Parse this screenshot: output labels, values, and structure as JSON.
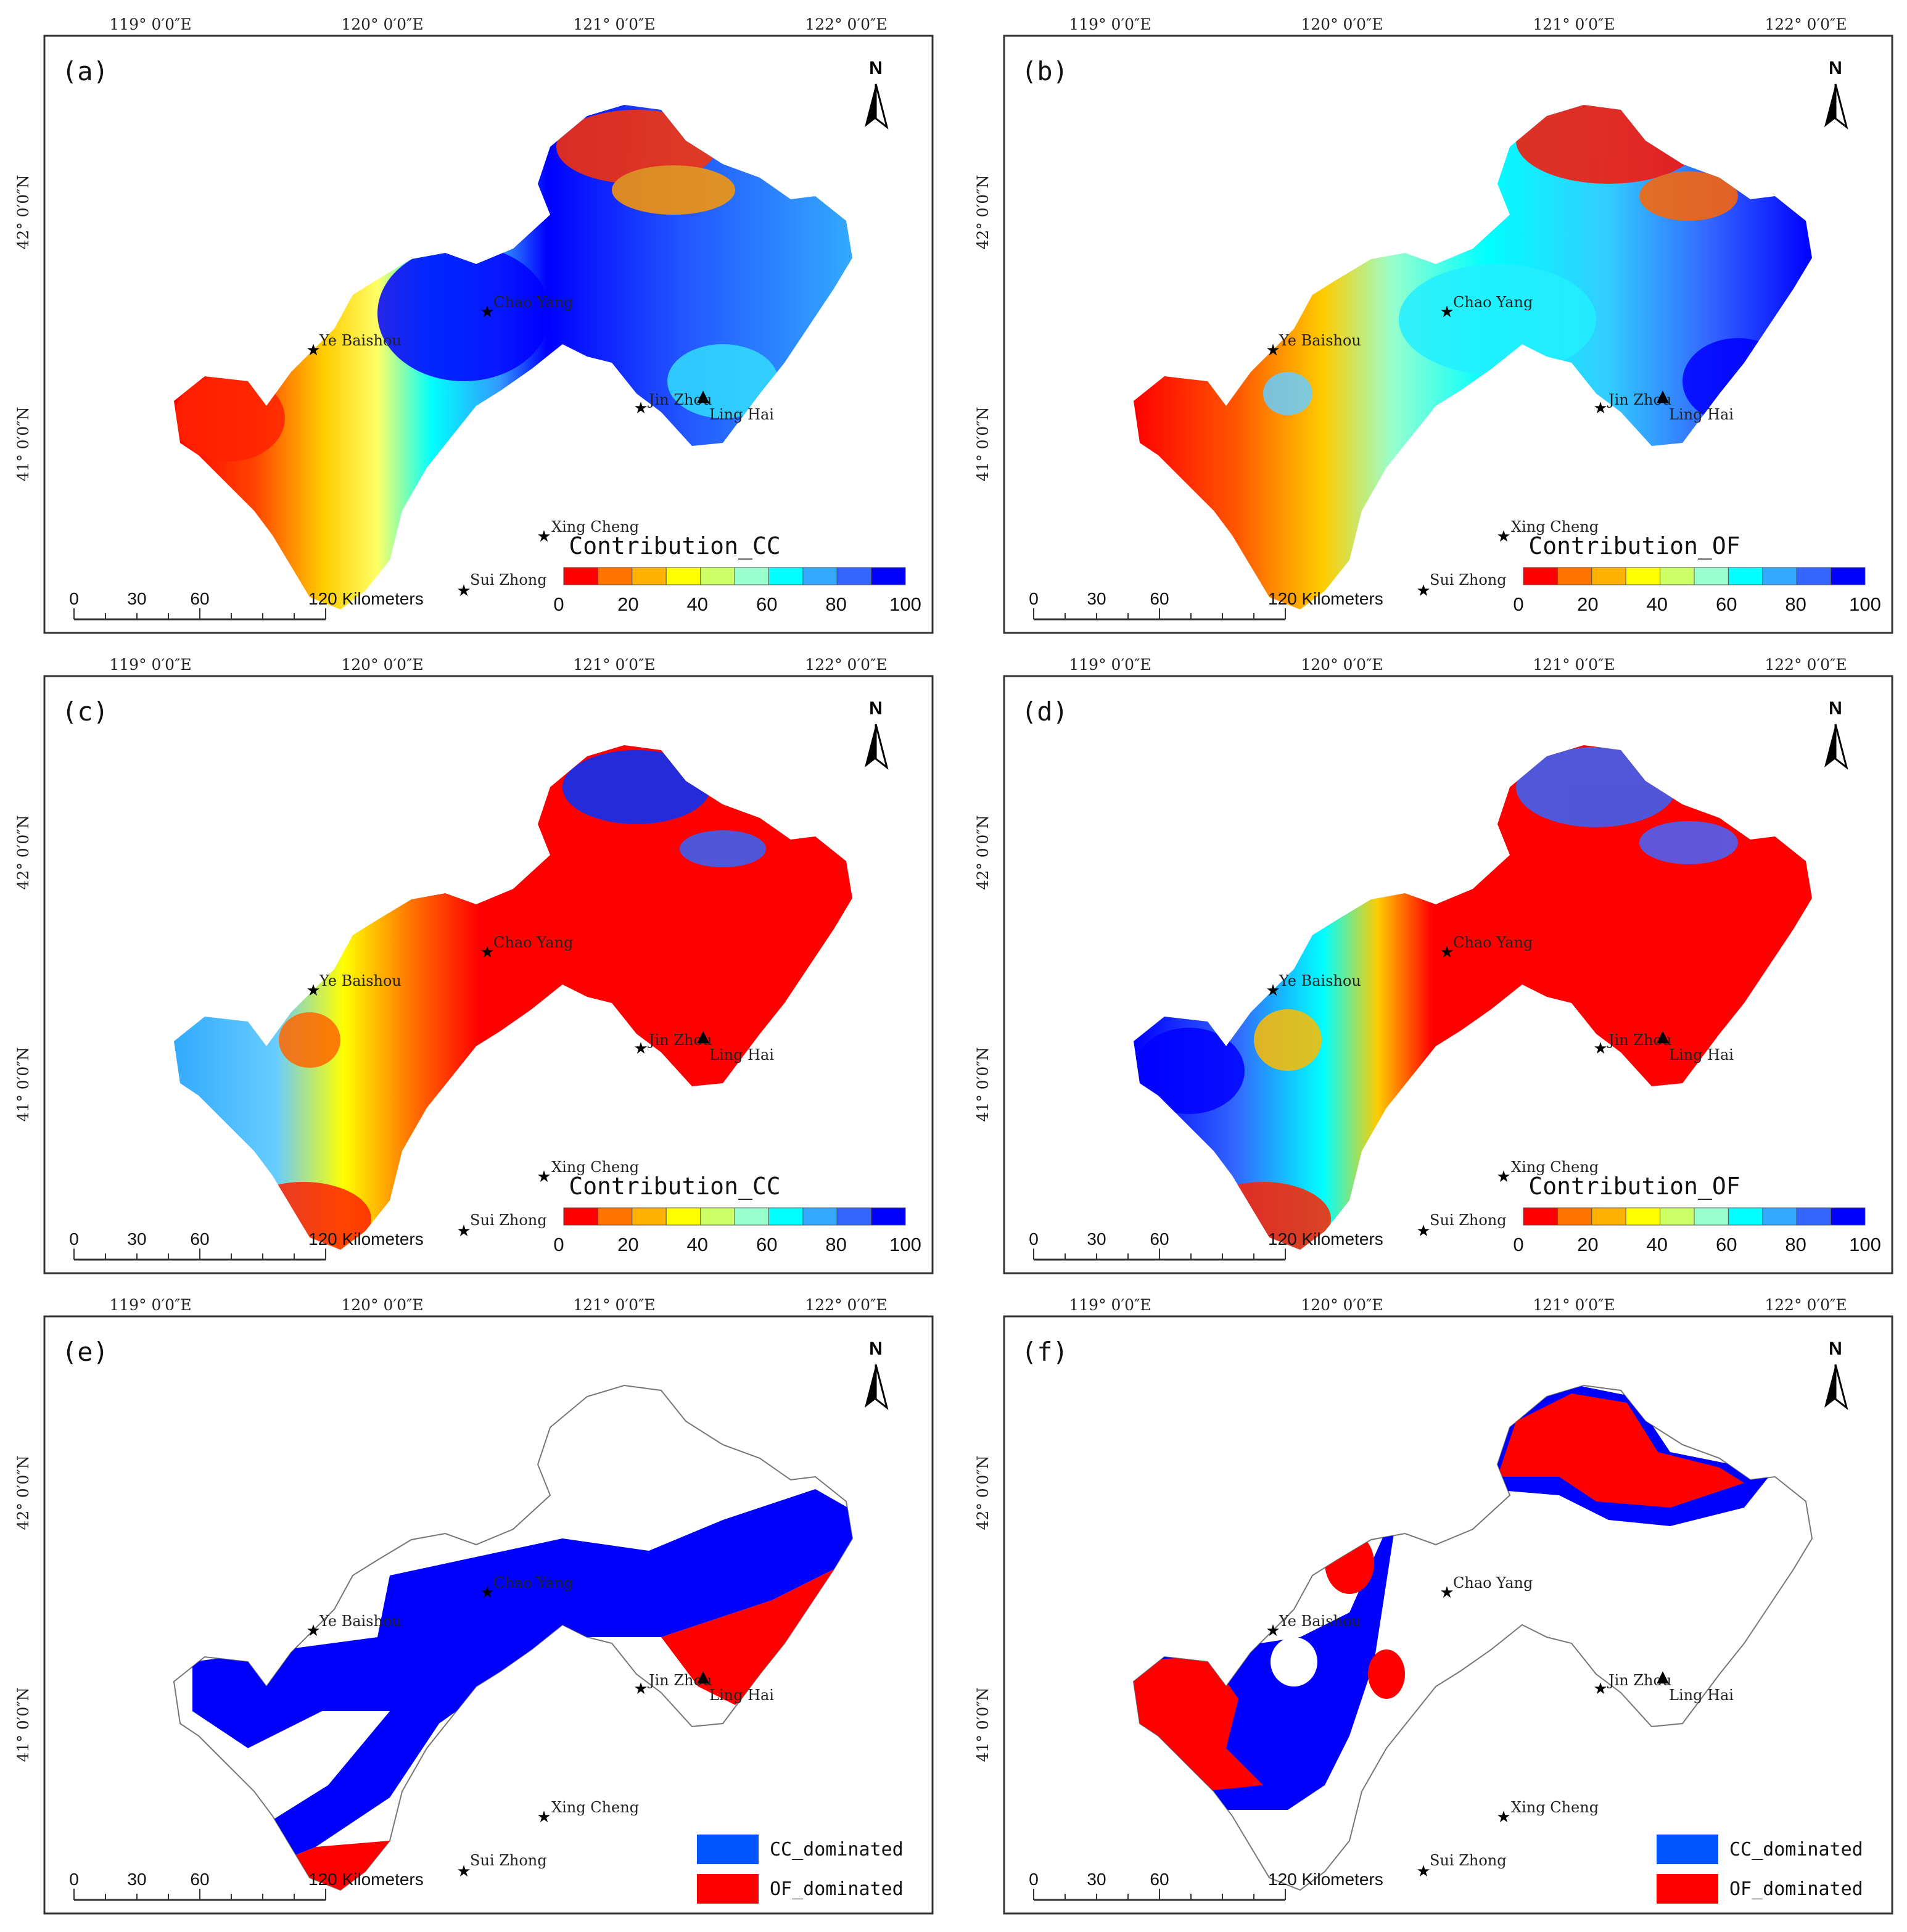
{
  "panels": [
    {
      "label": "(a)",
      "legend_title": "Contribution_CC",
      "legend_type": "gradient",
      "palette": "cc"
    },
    {
      "label": "(b)",
      "legend_title": "Contribution_OF",
      "legend_type": "gradient",
      "palette": "of"
    },
    {
      "label": "(c)",
      "legend_title": "Contribution_CC",
      "legend_type": "gradient",
      "palette": "cc2"
    },
    {
      "label": "(d)",
      "legend_title": "Contribution_OF",
      "legend_type": "gradient",
      "palette": "of2"
    },
    {
      "label": "(e)",
      "legend_type": "categorical",
      "palette": "domE"
    },
    {
      "label": "(f)",
      "legend_type": "categorical",
      "palette": "domF"
    }
  ],
  "longitude_labels": [
    "119° 0′0″E",
    "120° 0′0″E",
    "121° 0′0″E",
    "122° 0′0″E"
  ],
  "latitude_labels": [
    "42° 0′0″N",
    "41° 0′0″N"
  ],
  "north_label": "N",
  "cities": [
    {
      "name": "Chao Yang"
    },
    {
      "name": "Ye Baishou"
    },
    {
      "name": "Jin Zhou"
    },
    {
      "name": "Ling Hai"
    },
    {
      "name": "Xing Cheng"
    },
    {
      "name": "Sui Zhong"
    }
  ],
  "scale_bar": {
    "ticks": [
      "0",
      "30",
      "60"
    ],
    "end_label": "120 Kilometers"
  },
  "gradient_legend": {
    "ticks": [
      "0",
      "20",
      "40",
      "60",
      "80",
      "100"
    ],
    "colors": [
      "#ff0000",
      "#ff7300",
      "#ffb000",
      "#ffff00",
      "#ccff66",
      "#99ffcc",
      "#00ffff",
      "#33aaff",
      "#3366ff",
      "#0000ff"
    ]
  },
  "categorical_legend": [
    {
      "label": "CC_dominated",
      "color": "#0055ff"
    },
    {
      "label": "OF_dominated",
      "color": "#ff0000"
    }
  ]
}
